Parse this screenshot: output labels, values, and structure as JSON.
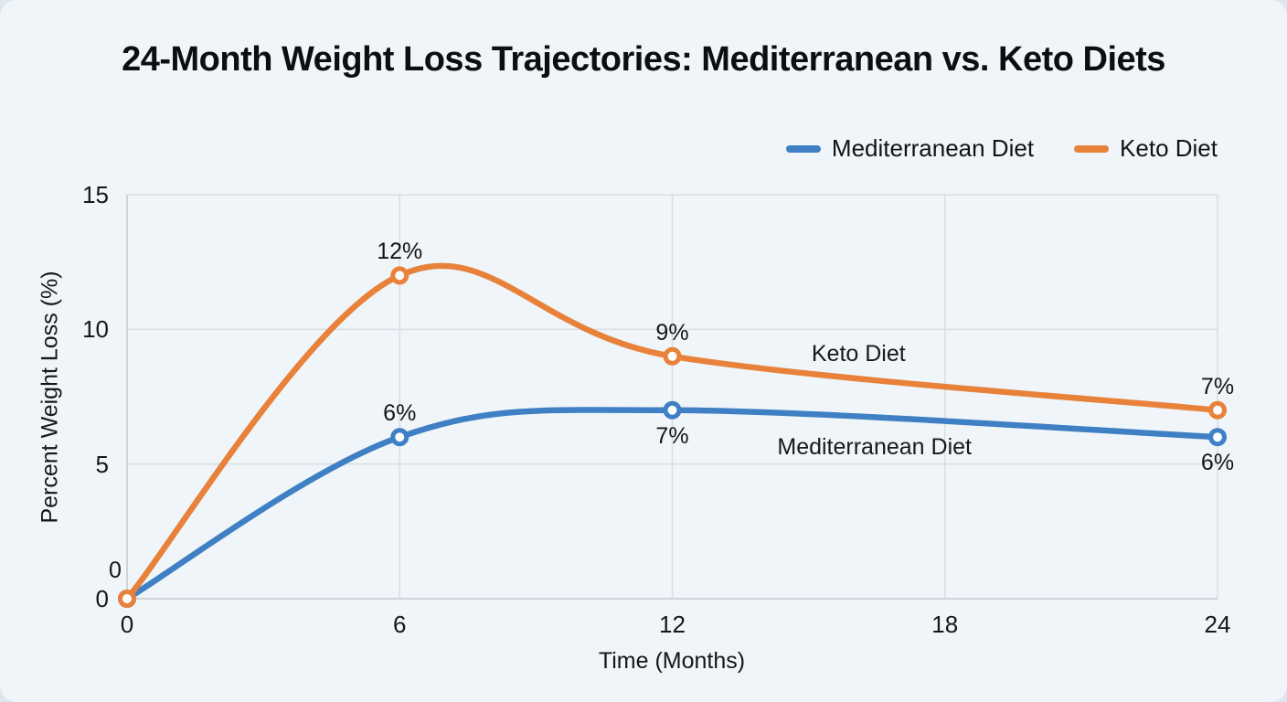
{
  "page": {
    "background": "#f0f5f9"
  },
  "title": "24-Month Weight Loss Trajectories: Mediterranean vs. Keto Diets",
  "legend": [
    {
      "label": "Mediterranean Diet",
      "color": "#3f80c4"
    },
    {
      "label": "Keto Diet",
      "color": "#e8823b"
    }
  ],
  "chart_data": {
    "type": "line",
    "title": "24-Month Weight Loss Trajectories: Mediterranean vs. Keto Diets",
    "xlabel": "Time (Months)",
    "ylabel": "Percent Weight Loss (%)",
    "xlim": [
      0,
      24
    ],
    "ylim": [
      0,
      15
    ],
    "x_ticks": [
      0,
      6,
      12,
      18,
      24
    ],
    "y_ticks": [
      0,
      5,
      10,
      15
    ],
    "grid": true,
    "legend_position": "top-right",
    "background": "#f0f5f9",
    "grid_color": "#d8dee3",
    "axis_color": "#c2c9cf",
    "marker_fill": "#fbfdff",
    "series": [
      {
        "name": "Mediterranean Diet",
        "color": "#3f80c4",
        "x": [
          0,
          6,
          12,
          24
        ],
        "values": [
          0,
          6,
          7,
          6
        ],
        "point_labels": [
          {
            "text": "",
            "pos": "none"
          },
          {
            "text": "6%",
            "pos": "above"
          },
          {
            "text": "7%",
            "pos": "below"
          },
          {
            "text": "6%",
            "pos": "below"
          }
        ],
        "annotation": {
          "text": "Mediterranean Diet",
          "x": 16.45,
          "y": 5.65
        }
      },
      {
        "name": "Keto Diet",
        "color": "#e8823b",
        "x": [
          0,
          6,
          12,
          24
        ],
        "values": [
          0,
          12,
          9,
          7
        ],
        "point_labels": [
          {
            "text": "0",
            "pos": "above-left"
          },
          {
            "text": "12%",
            "pos": "above"
          },
          {
            "text": "9%",
            "pos": "above"
          },
          {
            "text": "7%",
            "pos": "above"
          }
        ],
        "annotation": {
          "text": "Keto Diet",
          "x": 16.1,
          "y": 9.1
        }
      }
    ]
  }
}
